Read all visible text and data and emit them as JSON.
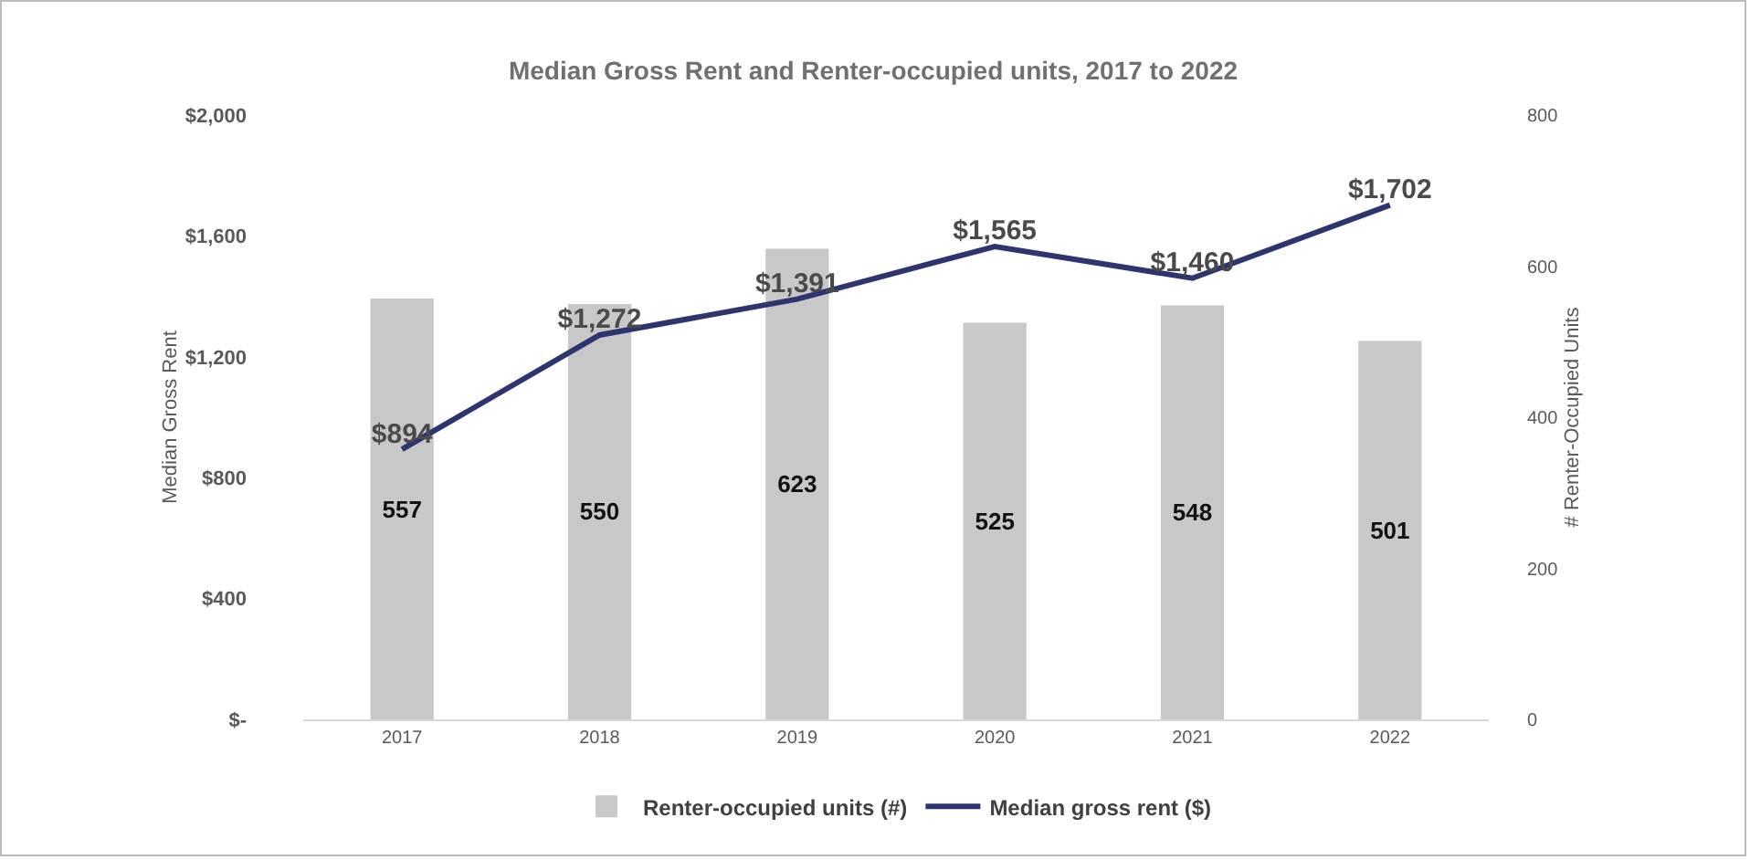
{
  "chart_data": {
    "type": "bar",
    "title": "Median Gross Rent and Renter-occupied units, 2017 to 2022",
    "ylabel": "Median Gross Rent",
    "y2label": "# Renter-Occupied Units",
    "categories": [
      "2017",
      "2018",
      "2019",
      "2020",
      "2021",
      "2022"
    ],
    "series": [
      {
        "name": "Renter-occupied units (#)",
        "axis": "y2",
        "color": "#c8c8c8",
        "values": [
          557,
          550,
          623,
          525,
          548,
          501
        ]
      },
      {
        "name": "Median gross rent ($)",
        "type": "line",
        "axis": "y",
        "color": "#2e3470",
        "values": [
          894,
          1272,
          1391,
          1565,
          1460,
          1702
        ],
        "value_labels": [
          "$894",
          "$1,272",
          "$1,391",
          "$1,565",
          "$1,460",
          "$1,702"
        ]
      }
    ],
    "ylim": [
      0,
      2000
    ],
    "yticks": [
      {
        "value": 0,
        "label": "$-"
      },
      {
        "value": 400,
        "label": "$400"
      },
      {
        "value": 800,
        "label": "$800"
      },
      {
        "value": 1200,
        "label": "$1,200"
      },
      {
        "value": 1600,
        "label": "$1,600"
      },
      {
        "value": 2000,
        "label": "$2,000"
      }
    ],
    "y2lim": [
      0,
      800
    ],
    "y2ticks": [
      0,
      200,
      400,
      600,
      800
    ],
    "data_labels": true,
    "grid": false,
    "legend": "bottom",
    "marker": "none",
    "line_style": "solid"
  }
}
